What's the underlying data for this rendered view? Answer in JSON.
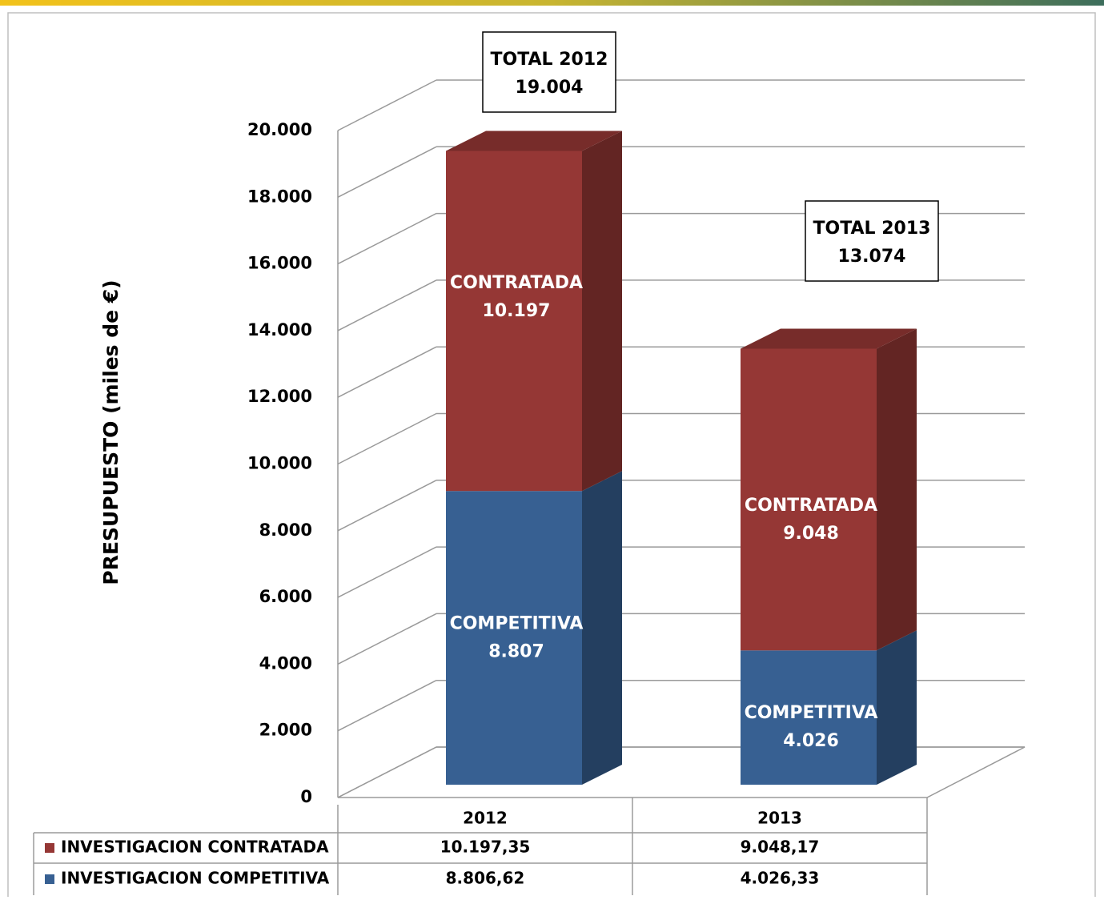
{
  "chart_data": {
    "type": "bar3d_stacked",
    "ylabel": "PRESUPUESTO (miles de €)",
    "categories": [
      "2012",
      "2013"
    ],
    "series": [
      {
        "name": "INVESTIGACION COMPETITIVA",
        "label_name": "COMPETITIVA",
        "color": "#376092",
        "side_color": "#243f60",
        "top_color": "#2c4d75",
        "values": [
          8806.62,
          4026.33
        ],
        "value_labels": [
          "8.807",
          "4.026"
        ],
        "table_labels": [
          "8.806,62",
          "4.026,33"
        ]
      },
      {
        "name": "INVESTIGACION CONTRATADA",
        "label_name": "CONTRATADA",
        "color": "#953735",
        "side_color": "#632523",
        "top_color": "#772c2a",
        "values": [
          10197.35,
          9048.17
        ],
        "value_labels": [
          "10.197",
          "9.048"
        ],
        "table_labels": [
          "10.197,35",
          "9.048,17"
        ]
      }
    ],
    "totals": [
      {
        "label": "TOTAL 2012",
        "value": 19004,
        "value_label": "19.004"
      },
      {
        "label": "TOTAL 2013",
        "value": 13074,
        "value_label": "13.074"
      }
    ],
    "ylim": [
      0,
      20000
    ],
    "yticks": [
      0,
      {
        "value": 2000,
        "label": "2.000"
      },
      {
        "value": 4000,
        "label": "4.000"
      },
      {
        "value": 6000,
        "label": "6.000"
      },
      {
        "value": 8000,
        "label": "8.000"
      },
      {
        "value": 10000,
        "label": "10.000"
      },
      {
        "value": 12000,
        "label": "12.000"
      },
      {
        "value": 14000,
        "label": "14.000"
      },
      {
        "value": 16000,
        "label": "16.000"
      },
      {
        "value": 18000,
        "label": "18.000"
      },
      {
        "value": 20000,
        "label": "20.000"
      }
    ],
    "grid": true
  }
}
